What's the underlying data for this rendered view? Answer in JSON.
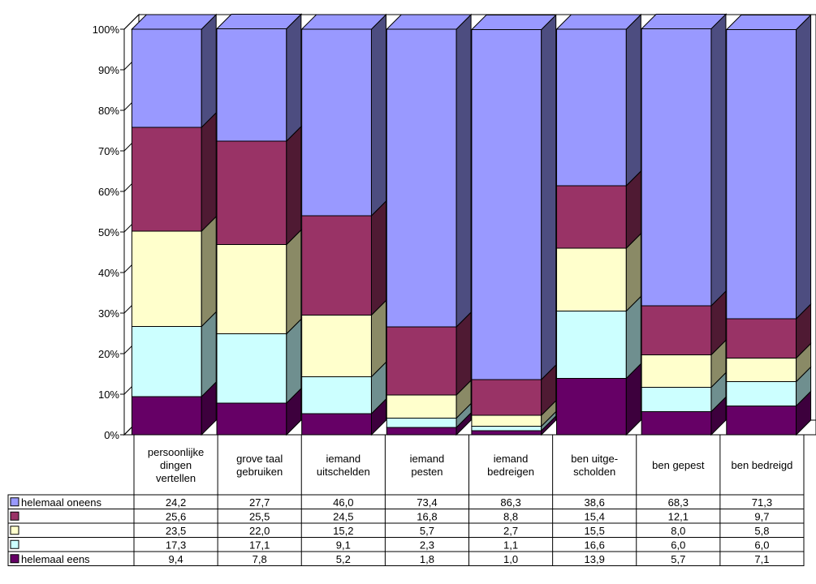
{
  "chart_data": {
    "type": "bar",
    "stacked": true,
    "percent_stacked": true,
    "three_d": true,
    "categories": [
      [
        "persoonlijke",
        "dingen",
        "vertellen"
      ],
      [
        "grove taal",
        "gebruiken"
      ],
      [
        "iemand",
        "uitschelden"
      ],
      [
        "iemand",
        "pesten"
      ],
      [
        "iemand",
        "bedreigen"
      ],
      [
        "ben uitge-",
        "scholden"
      ],
      [
        "ben gepest"
      ],
      [
        "ben bedreigd"
      ]
    ],
    "yticks": [
      "0%",
      "10%",
      "20%",
      "30%",
      "40%",
      "50%",
      "60%",
      "70%",
      "80%",
      "90%",
      "100%"
    ],
    "ylim": [
      0,
      100
    ],
    "series": [
      {
        "name": "helemaal eens",
        "color": "#660066",
        "side": "#3d003d",
        "values": [
          "9,4",
          "7,8",
          "5,2",
          "1,8",
          "1,0",
          "13,9",
          "5,7",
          "7,1"
        ]
      },
      {
        "name": "",
        "color": "#ccffff",
        "side": "#6f8f8f",
        "values": [
          "17,3",
          "17,1",
          "9,1",
          "2,3",
          "1,1",
          "16,6",
          "6,0",
          "6,0"
        ]
      },
      {
        "name": "",
        "color": "#ffffcc",
        "side": "#8a8a66",
        "values": [
          "23,5",
          "22,0",
          "15,2",
          "5,7",
          "2,7",
          "15,5",
          "8,0",
          "5,8"
        ]
      },
      {
        "name": "",
        "color": "#993366",
        "side": "#4f1a33",
        "values": [
          "25,6",
          "25,5",
          "24,5",
          "16,8",
          "8,8",
          "15,4",
          "12,1",
          "9,7"
        ]
      },
      {
        "name": "helemaal oneens",
        "color": "#9999ff",
        "side": "#4d4d80",
        "values": [
          "24,2",
          "27,7",
          "46,0",
          "73,4",
          "86,3",
          "38,6",
          "68,3",
          "71,3"
        ]
      }
    ],
    "table_row_order": [
      4,
      3,
      2,
      1,
      0
    ]
  }
}
